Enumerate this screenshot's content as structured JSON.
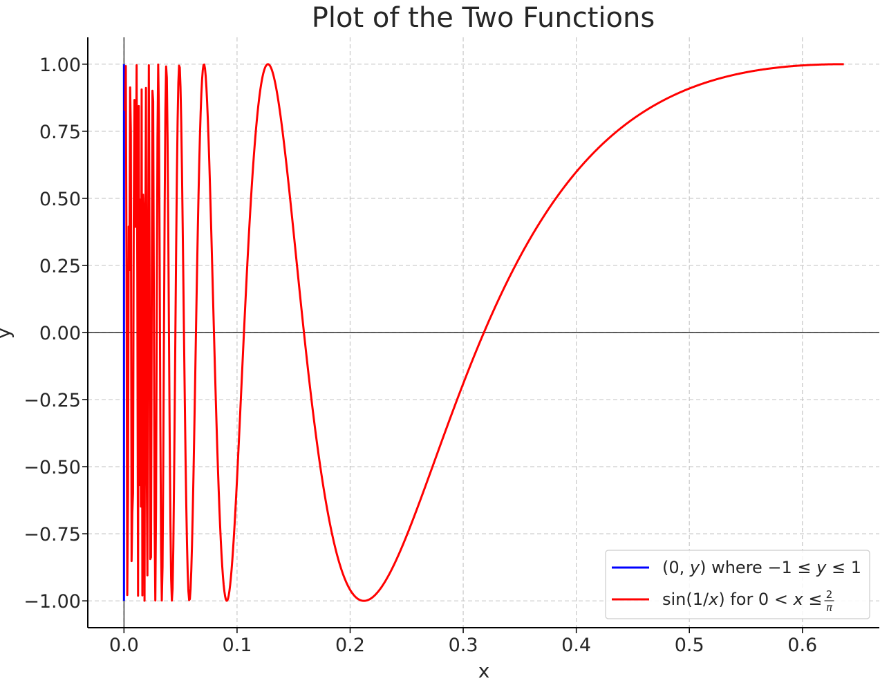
{
  "chart_data": {
    "type": "line",
    "title": "Plot of the Two Functions",
    "xlabel": "x",
    "ylabel": "y",
    "xlim": [
      -0.032,
      0.668
    ],
    "ylim": [
      -1.1,
      1.1
    ],
    "xticks": [
      0.0,
      0.1,
      0.2,
      0.3,
      0.4,
      0.5,
      0.6
    ],
    "xtick_labels": [
      "0.0",
      "0.1",
      "0.2",
      "0.3",
      "0.4",
      "0.5",
      "0.6"
    ],
    "yticks": [
      1.0,
      0.75,
      0.5,
      0.25,
      0.0,
      -0.25,
      -0.5,
      -0.75,
      -1.0
    ],
    "ytick_labels": [
      "1.00",
      "0.75",
      "0.50",
      "0.25",
      "0.00",
      "−0.25",
      "−0.50",
      "−0.75",
      "−1.00"
    ],
    "grid": true,
    "reference_lines": {
      "x": 0,
      "y": 0
    },
    "legend": {
      "position": "lower-right",
      "entries": [
        {
          "series": 0,
          "text_parts": [
            {
              "t": "(0, "
            },
            {
              "t": "y",
              "italic": true
            },
            {
              "t": ") where −1 ≤ "
            },
            {
              "t": "y",
              "italic": true
            },
            {
              "t": " ≤ 1"
            }
          ]
        },
        {
          "series": 1,
          "text_parts": [
            {
              "t": "sin(1/"
            },
            {
              "t": "x",
              "italic": true
            },
            {
              "t": ") for 0 < "
            },
            {
              "t": "x",
              "italic": true
            },
            {
              "t": " ≤ "
            }
          ],
          "fraction": {
            "numerator": "2",
            "denominator": "π"
          }
        }
      ]
    },
    "series": [
      {
        "kind": "vertical-segment",
        "color": "#0000ff",
        "x": [
          0.0,
          0.0
        ],
        "y": [
          -1.0,
          1.0
        ]
      },
      {
        "kind": "function",
        "color": "#ff0000",
        "x_start": 0.001,
        "x_end": 0.6366,
        "sample_count": 1000,
        "y_at_x_end": 1.0
      }
    ]
  }
}
